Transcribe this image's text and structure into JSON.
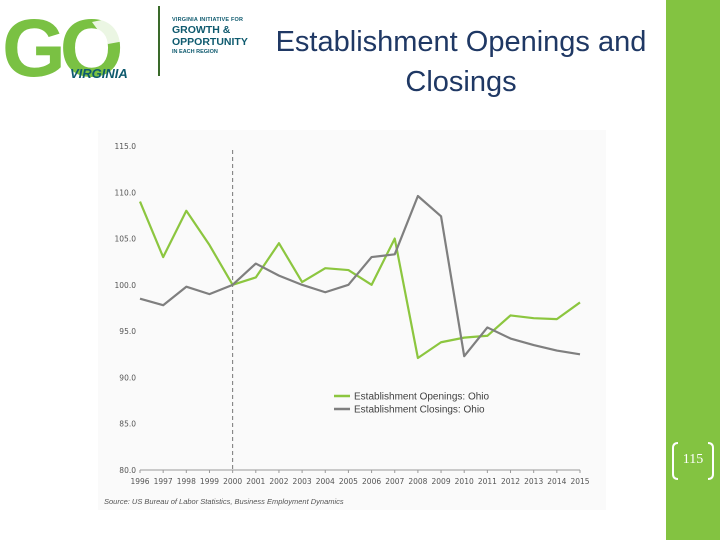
{
  "logo": {
    "main": "GO",
    "sub": "VIRGINIA",
    "tag_line1": "VIRGINIA INITIATIVE FOR",
    "tag_line2": "GROWTH &",
    "tag_line3": "OPPORTUNITY",
    "tag_line4": "IN EACH REGION"
  },
  "slide": {
    "title": "Establishment Openings and Closings",
    "page_number": "115"
  },
  "colors": {
    "accent_bar": "#83c341",
    "openings": "#8cc63f",
    "closings": "#7f7f7f",
    "title": "#1f3864"
  },
  "chart_data": {
    "type": "line",
    "x": [
      "1996",
      "1997",
      "1998",
      "1999",
      "2000",
      "2001",
      "2002",
      "2003",
      "2004",
      "2005",
      "2006",
      "2007",
      "2008",
      "2009",
      "2010",
      "2011",
      "2012",
      "2013",
      "2014",
      "2015"
    ],
    "series": [
      {
        "name": "Establishment Openings: Ohio",
        "values": [
          109.0,
          103.0,
          108.0,
          104.3,
          100.0,
          100.8,
          104.5,
          100.3,
          101.8,
          101.6,
          100.0,
          105.0,
          92.1,
          93.8,
          94.3,
          94.5,
          96.7,
          96.4,
          96.3,
          98.1
        ]
      },
      {
        "name": "Establishment Closings: Ohio",
        "values": [
          98.5,
          97.8,
          99.8,
          99.0,
          100.0,
          102.3,
          101.0,
          100.0,
          99.2,
          100.0,
          103.0,
          103.3,
          109.6,
          107.4,
          92.3,
          95.4,
          94.2,
          93.5,
          92.9,
          92.5
        ]
      }
    ],
    "ylim": [
      80,
      115
    ],
    "yticks": [
      "80.0",
      "85.0",
      "90.0",
      "95.0",
      "100.0",
      "105.0",
      "110.0",
      "115.0"
    ],
    "reference_line_x": "2000",
    "legend_position": "lower-right",
    "ylabel": "",
    "source": "Source: US Bureau of Labor Statistics, Business Employment Dynamics"
  }
}
